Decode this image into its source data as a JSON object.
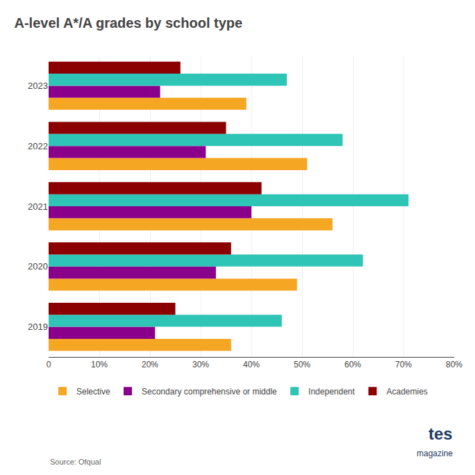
{
  "chart_data": {
    "type": "bar",
    "orientation": "horizontal",
    "title": "A-level A*/A grades by school type",
    "categories": [
      "2019",
      "2020",
      "2021",
      "2022",
      "2023"
    ],
    "series": [
      {
        "name": "Selective",
        "color": "#F5A623",
        "values": [
          36,
          49,
          56,
          51,
          39
        ]
      },
      {
        "name": "Secondary comprehensive or middle",
        "color": "#8B008B",
        "values": [
          21,
          33,
          40,
          31,
          22
        ]
      },
      {
        "name": "Independent",
        "color": "#2EC4B6",
        "values": [
          46,
          62,
          71,
          58,
          47
        ]
      },
      {
        "name": "Academies",
        "color": "#8B0000",
        "values": [
          25,
          36,
          42,
          35,
          26
        ]
      }
    ],
    "xlim": [
      0,
      80
    ],
    "xticks": [
      0,
      {
        "value": 10,
        "label": "10%"
      },
      {
        "value": 20,
        "label": "20%"
      },
      {
        "value": 30,
        "label": "30%"
      },
      {
        "value": 40,
        "label": "40%"
      },
      {
        "value": 50,
        "label": "50%"
      },
      {
        "value": 60,
        "label": "60%"
      },
      {
        "value": 70,
        "label": "70%"
      },
      {
        "value": 80,
        "label": "80%"
      }
    ],
    "grid": true,
    "legend": "bottom",
    "annotations": [
      "Source: Ofqual",
      "tes",
      "magazine"
    ]
  }
}
